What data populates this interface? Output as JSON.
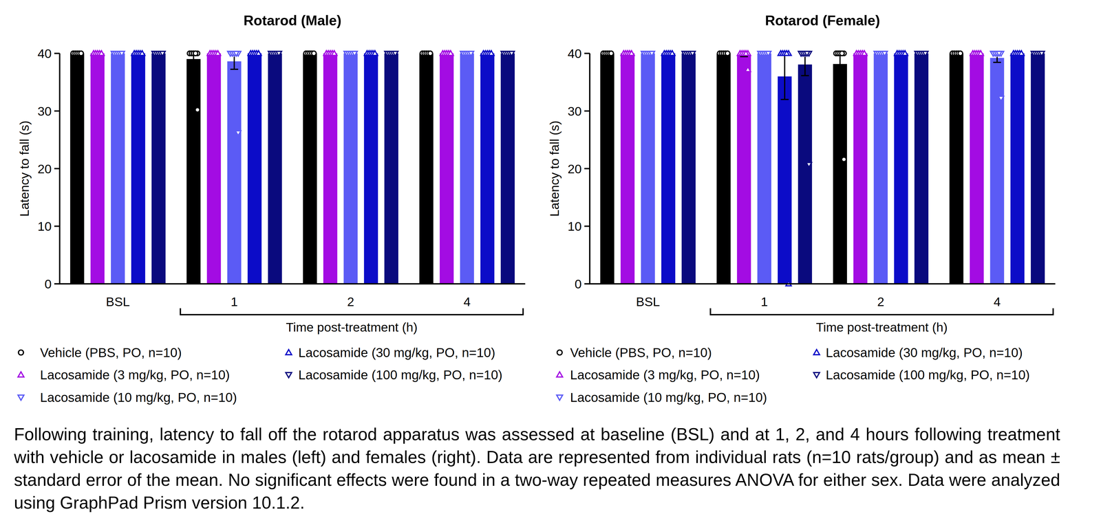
{
  "chart_data": [
    {
      "type": "bar",
      "title": "Rotarod (Male)",
      "categories": [
        "BSL",
        "1",
        "2",
        "4"
      ],
      "xlabel": "Time post-treatment (h)",
      "ylabel": "Latency to fall (s)",
      "ylim": [
        0,
        40
      ],
      "yticks": [
        0,
        10,
        20,
        30,
        40
      ],
      "grid": false,
      "series": [
        {
          "name": "Vehicle (PBS, PO, n=10)",
          "color": "#000000",
          "marker": "circle",
          "values": [
            40,
            39.02,
            40,
            40
          ],
          "errors": [
            0,
            0.98,
            0,
            0
          ],
          "points": [
            [
              40,
              40,
              40,
              40,
              40,
              40,
              40,
              40,
              40,
              40
            ],
            [
              40,
              40,
              40,
              40,
              40,
              40,
              40,
              40,
              40,
              30.2
            ],
            [
              40,
              40,
              40,
              40,
              40,
              40,
              40,
              40,
              40,
              40
            ],
            [
              40,
              40,
              40,
              40,
              40,
              40,
              40,
              40,
              40,
              40
            ]
          ]
        },
        {
          "name": "Lacosamide (3 mg/kg, PO, n=10)",
          "color": "#a30ce3",
          "marker": "triangle-up",
          "values": [
            40,
            40,
            40,
            40
          ],
          "errors": [
            0,
            0,
            0,
            0
          ],
          "points": [
            [
              40,
              40,
              40,
              40,
              40,
              40,
              40,
              40,
              40,
              40
            ],
            [
              40,
              40,
              40,
              40,
              40,
              40,
              40,
              40,
              40,
              40
            ],
            [
              40,
              40,
              40,
              40,
              40,
              40,
              40,
              40,
              40,
              40
            ],
            [
              40,
              40,
              40,
              40,
              40,
              40,
              40,
              40,
              40,
              40
            ]
          ]
        },
        {
          "name": "Lacosamide (10 mg/kg, PO, n=10)",
          "color": "#5b5bf5",
          "marker": "triangle-down",
          "values": [
            40,
            38.62,
            40,
            40
          ],
          "errors": [
            0,
            1.38,
            0,
            0
          ],
          "points": [
            [
              40,
              40,
              40,
              40,
              40,
              40,
              40,
              40,
              40,
              40
            ],
            [
              40,
              40,
              40,
              40,
              40,
              40,
              40,
              40,
              40,
              26.2
            ],
            [
              40,
              40,
              40,
              40,
              40,
              40,
              40,
              40,
              40,
              40
            ],
            [
              40,
              40,
              40,
              40,
              40,
              40,
              40,
              40,
              40,
              40
            ]
          ]
        },
        {
          "name": "Lacosamide (30 mg/kg, PO, n=10)",
          "color": "#0c0cc8",
          "marker": "triangle-up",
          "values": [
            40,
            40,
            40,
            40
          ],
          "errors": [
            0,
            0,
            0,
            0
          ],
          "points": [
            [
              40,
              40,
              40,
              40,
              40,
              40,
              40,
              40,
              40,
              40
            ],
            [
              40,
              40,
              40,
              40,
              40,
              40,
              40,
              40,
              40,
              40
            ],
            [
              40,
              40,
              40,
              40,
              40,
              40,
              40,
              40,
              40,
              40
            ],
            [
              40,
              40,
              40,
              40,
              40,
              40,
              40,
              40,
              40,
              40
            ]
          ]
        },
        {
          "name": "Lacosamide (100 mg/kg, PO, n=10)",
          "color": "#0a0a7e",
          "marker": "triangle-down",
          "values": [
            40,
            40,
            40,
            40
          ],
          "errors": [
            0,
            0,
            0,
            0
          ],
          "points": [
            [
              40,
              40,
              40,
              40,
              40,
              40,
              40,
              40,
              40,
              40
            ],
            [
              40,
              40,
              40,
              40,
              40,
              40,
              40,
              40,
              40,
              40
            ],
            [
              40,
              40,
              40,
              40,
              40,
              40,
              40,
              40,
              40,
              40
            ],
            [
              40,
              40,
              40,
              40,
              40,
              40,
              40,
              40,
              40,
              40
            ]
          ]
        }
      ]
    },
    {
      "type": "bar",
      "title": "Rotarod (Female)",
      "categories": [
        "BSL",
        "1",
        "2",
        "4"
      ],
      "xlabel": "Time post-treatment (h)",
      "ylabel": "Latency to fall (s)",
      "ylim": [
        0,
        40
      ],
      "yticks": [
        0,
        10,
        20,
        30,
        40
      ],
      "grid": false,
      "series": [
        {
          "name": "Vehicle (PBS, PO, n=10)",
          "color": "#000000",
          "marker": "circle",
          "values": [
            40,
            40,
            38.16,
            40
          ],
          "errors": [
            0,
            0,
            1.84,
            0
          ],
          "points": [
            [
              40,
              40,
              40,
              40,
              40,
              40,
              40,
              40,
              40,
              40
            ],
            [
              40,
              40,
              40,
              40,
              40,
              40,
              40,
              40,
              40,
              40
            ],
            [
              40,
              40,
              40,
              40,
              40,
              40,
              40,
              40,
              40,
              21.6
            ],
            [
              40,
              40,
              40,
              40,
              40,
              40,
              40,
              40,
              40,
              40
            ]
          ]
        },
        {
          "name": "Lacosamide (3 mg/kg, PO, n=10)",
          "color": "#a30ce3",
          "marker": "triangle-up",
          "values": [
            40,
            39.72,
            40,
            40
          ],
          "errors": [
            0,
            0.28,
            0,
            0
          ],
          "points": [
            [
              40,
              40,
              40,
              40,
              40,
              40,
              40,
              40,
              40,
              40
            ],
            [
              40,
              40,
              40,
              40,
              40,
              40,
              40,
              40,
              40,
              37.2
            ],
            [
              40,
              40,
              40,
              40,
              40,
              40,
              40,
              40,
              40,
              40
            ],
            [
              40,
              40,
              40,
              40,
              40,
              40,
              40,
              40,
              40,
              40
            ]
          ]
        },
        {
          "name": "Lacosamide (10 mg/kg, PO, n=10)",
          "color": "#5b5bf5",
          "marker": "triangle-down",
          "values": [
            40,
            40,
            40,
            39.22
          ],
          "errors": [
            0,
            0,
            0,
            0.78
          ],
          "points": [
            [
              40,
              40,
              40,
              40,
              40,
              40,
              40,
              40,
              40,
              40
            ],
            [
              40,
              40,
              40,
              40,
              40,
              40,
              40,
              40,
              40,
              40
            ],
            [
              40,
              40,
              40,
              40,
              40,
              40,
              40,
              40,
              40,
              40
            ],
            [
              40,
              40,
              40,
              40,
              40,
              40,
              40,
              40,
              40,
              32.2
            ]
          ]
        },
        {
          "name": "Lacosamide (30 mg/kg, PO, n=10)",
          "color": "#0c0cc8",
          "marker": "triangle-up",
          "values": [
            40,
            36,
            40,
            40
          ],
          "errors": [
            0,
            4,
            0,
            0
          ],
          "points": [
            [
              40,
              40,
              40,
              40,
              40,
              40,
              40,
              40,
              40,
              40
            ],
            [
              40,
              40,
              40,
              40,
              40,
              40,
              40,
              40,
              40,
              0
            ],
            [
              40,
              40,
              40,
              40,
              40,
              40,
              40,
              40,
              40,
              40
            ],
            [
              40,
              40,
              40,
              40,
              40,
              40,
              40,
              40,
              40,
              40
            ]
          ]
        },
        {
          "name": "Lacosamide (100 mg/kg, PO, n=10)",
          "color": "#0a0a7e",
          "marker": "triangle-down",
          "values": [
            40,
            38.07,
            40,
            40
          ],
          "errors": [
            0,
            1.93,
            0,
            0
          ],
          "points": [
            [
              40,
              40,
              40,
              40,
              40,
              40,
              40,
              40,
              40,
              40
            ],
            [
              40,
              40,
              40,
              40,
              40,
              40,
              40,
              40,
              40,
              20.7
            ],
            [
              40,
              40,
              40,
              40,
              40,
              40,
              40,
              40,
              40,
              40
            ],
            [
              40,
              40,
              40,
              40,
              40,
              40,
              40,
              40,
              40,
              40
            ]
          ]
        }
      ]
    }
  ],
  "caption": "Following training, latency to fall off the rotarod apparatus was assessed at baseline (BSL) and at 1, 2, and 4 hours following treatment with vehicle or lacosamide in males (left) and females (right). Data are represented from individual rats (n=10 rats/group) and as mean ± standard error of the mean. No significant effects were found in a two-way repeated measures ANOVA for either sex. Data were analyzed using GraphPad Prism version 10.1.2."
}
